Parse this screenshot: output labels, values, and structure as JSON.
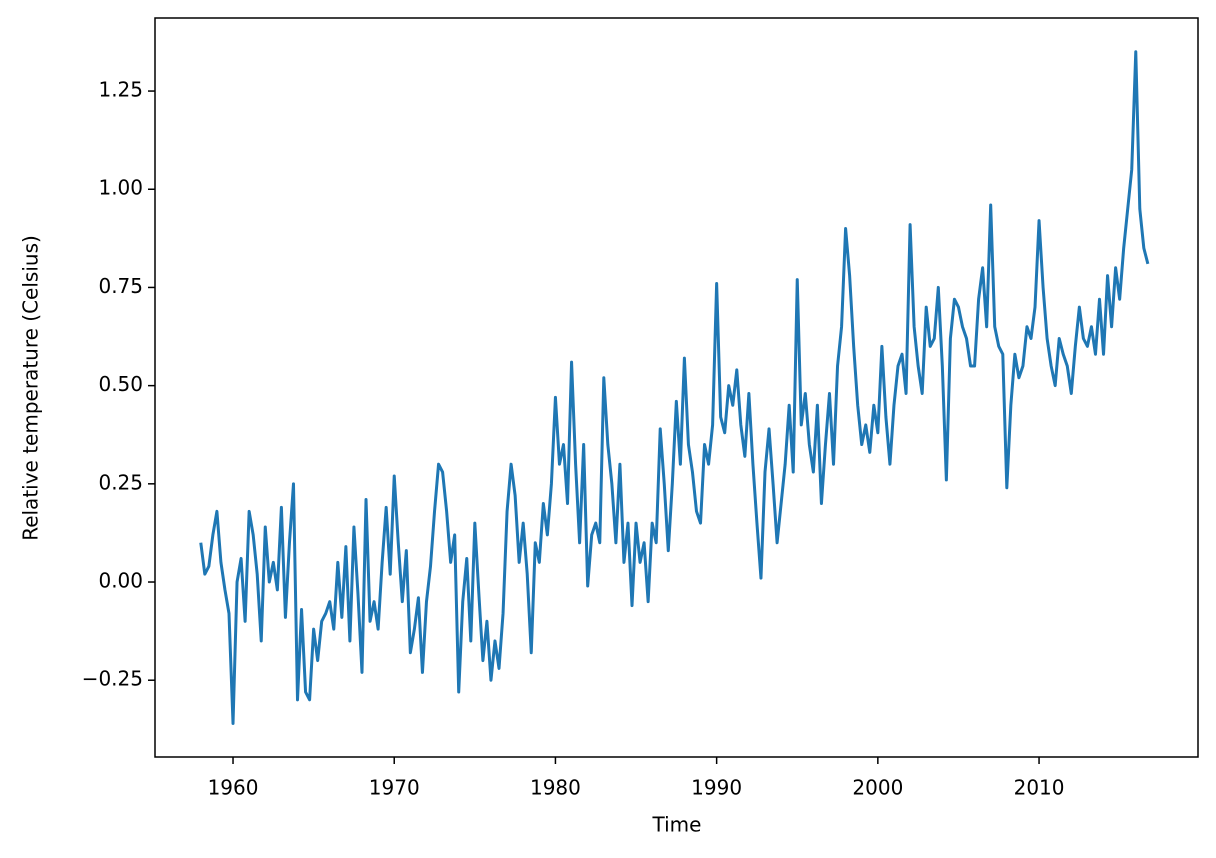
{
  "chart_data": {
    "type": "line",
    "xlabel": "Time",
    "ylabel": "Relative temperature (Celsius)",
    "xlim": [
      1955.16,
      2019.86
    ],
    "ylim": [
      -0.4455,
      1.436
    ],
    "xticks": [
      1960,
      1970,
      1980,
      1990,
      2000,
      2010
    ],
    "yticks": [
      {
        "value": -0.25,
        "label": "−0.25"
      },
      {
        "value": 0,
        "label": "0.00"
      },
      0.25,
      {
        "value": 0.5,
        "label": "0.50"
      },
      0.75,
      {
        "value": 1,
        "label": "1.00"
      },
      1.25
    ],
    "grid": false,
    "x": [
      1958,
      1958.25,
      1958.5,
      1958.75,
      1959,
      1959.25,
      1959.5,
      1959.75,
      1960,
      1960.25,
      1960.5,
      1960.75,
      1961,
      1961.25,
      1961.5,
      1961.75,
      1962,
      1962.25,
      1962.5,
      1962.75,
      1963,
      1963.25,
      1963.5,
      1963.75,
      1964,
      1964.25,
      1964.5,
      1964.75,
      1965,
      1965.25,
      1965.5,
      1965.75,
      1966,
      1966.25,
      1966.5,
      1966.75,
      1967,
      1967.25,
      1967.5,
      1967.75,
      1968,
      1968.25,
      1968.5,
      1968.75,
      1969,
      1969.25,
      1969.5,
      1969.75,
      1970,
      1970.25,
      1970.5,
      1970.75,
      1971,
      1971.25,
      1971.5,
      1971.75,
      1972,
      1972.25,
      1972.5,
      1972.75,
      1973,
      1973.25,
      1973.5,
      1973.75,
      1974,
      1974.25,
      1974.5,
      1974.75,
      1975,
      1975.25,
      1975.5,
      1975.75,
      1976,
      1976.25,
      1976.5,
      1976.75,
      1977,
      1977.25,
      1977.5,
      1977.75,
      1978,
      1978.25,
      1978.5,
      1978.75,
      1979,
      1979.25,
      1979.5,
      1979.75,
      1980,
      1980.25,
      1980.5,
      1980.75,
      1981,
      1981.25,
      1981.5,
      1981.75,
      1982,
      1982.25,
      1982.5,
      1982.75,
      1983,
      1983.25,
      1983.5,
      1983.75,
      1984,
      1984.25,
      1984.5,
      1984.75,
      1985,
      1985.25,
      1985.5,
      1985.75,
      1986,
      1986.25,
      1986.5,
      1986.75,
      1987,
      1987.25,
      1987.5,
      1987.75,
      1988,
      1988.25,
      1988.5,
      1988.75,
      1989,
      1989.25,
      1989.5,
      1989.75,
      1990,
      1990.25,
      1990.5,
      1990.75,
      1991,
      1991.25,
      1991.5,
      1991.75,
      1992,
      1992.25,
      1992.5,
      1992.75,
      1993,
      1993.25,
      1993.5,
      1993.75,
      1994,
      1994.25,
      1994.5,
      1994.75,
      1995,
      1995.25,
      1995.5,
      1995.75,
      1996,
      1996.25,
      1996.5,
      1996.75,
      1997,
      1997.25,
      1997.5,
      1997.75,
      1998,
      1998.25,
      1998.5,
      1998.75,
      1999,
      1999.25,
      1999.5,
      1999.75,
      2000,
      2000.25,
      2000.5,
      2000.75,
      2001,
      2001.25,
      2001.5,
      2001.75,
      2002,
      2002.25,
      2002.5,
      2002.75,
      2003,
      2003.25,
      2003.5,
      2003.75,
      2004,
      2004.25,
      2004.5,
      2004.75,
      2005,
      2005.25,
      2005.5,
      2005.75,
      2006,
      2006.25,
      2006.5,
      2006.75,
      2007,
      2007.25,
      2007.5,
      2007.75,
      2008,
      2008.25,
      2008.5,
      2008.75,
      2009,
      2009.25,
      2009.5,
      2009.75,
      2010,
      2010.25,
      2010.5,
      2010.75,
      2011,
      2011.25,
      2011.5,
      2011.75,
      2012,
      2012.25,
      2012.5,
      2012.75,
      2013,
      2013.25,
      2013.5,
      2013.75,
      2014,
      2014.25,
      2014.5,
      2014.75,
      2015,
      2015.25,
      2015.5,
      2015.75,
      2016,
      2016.25,
      2016.5,
      2016.75
    ],
    "series": [
      {
        "color": "#1f77b4",
        "values": [
          0.1,
          0.02,
          0.04,
          0.12,
          0.18,
          0.05,
          -0.02,
          -0.08,
          -0.36,
          0.0,
          0.06,
          -0.1,
          0.18,
          0.12,
          0.02,
          -0.15,
          0.14,
          0.0,
          0.05,
          -0.02,
          0.19,
          -0.09,
          0.1,
          0.25,
          -0.3,
          -0.07,
          -0.28,
          -0.3,
          -0.12,
          -0.2,
          -0.1,
          -0.08,
          -0.05,
          -0.12,
          0.05,
          -0.09,
          0.09,
          -0.15,
          0.14,
          -0.03,
          -0.23,
          0.21,
          -0.1,
          -0.05,
          -0.12,
          0.05,
          0.19,
          0.02,
          0.27,
          0.1,
          -0.05,
          0.08,
          -0.18,
          -0.12,
          -0.04,
          -0.23,
          -0.05,
          0.04,
          0.18,
          0.3,
          0.28,
          0.18,
          0.05,
          0.12,
          -0.28,
          -0.05,
          0.06,
          -0.15,
          0.15,
          -0.03,
          -0.2,
          -0.1,
          -0.25,
          -0.15,
          -0.22,
          -0.08,
          0.18,
          0.3,
          0.22,
          0.05,
          0.15,
          0.02,
          -0.18,
          0.1,
          0.05,
          0.2,
          0.12,
          0.25,
          0.47,
          0.3,
          0.35,
          0.2,
          0.56,
          0.3,
          0.1,
          0.35,
          -0.01,
          0.12,
          0.15,
          0.1,
          0.52,
          0.35,
          0.25,
          0.1,
          0.3,
          0.05,
          0.15,
          -0.06,
          0.15,
          0.05,
          0.1,
          -0.05,
          0.15,
          0.1,
          0.39,
          0.25,
          0.08,
          0.25,
          0.46,
          0.3,
          0.57,
          0.35,
          0.28,
          0.18,
          0.15,
          0.35,
          0.3,
          0.4,
          0.76,
          0.42,
          0.38,
          0.5,
          0.45,
          0.54,
          0.4,
          0.32,
          0.48,
          0.3,
          0.15,
          0.01,
          0.28,
          0.39,
          0.25,
          0.1,
          0.2,
          0.3,
          0.45,
          0.28,
          0.77,
          0.4,
          0.48,
          0.35,
          0.28,
          0.45,
          0.2,
          0.35,
          0.48,
          0.3,
          0.55,
          0.65,
          0.9,
          0.78,
          0.6,
          0.45,
          0.35,
          0.4,
          0.33,
          0.45,
          0.38,
          0.6,
          0.42,
          0.3,
          0.45,
          0.55,
          0.58,
          0.48,
          0.91,
          0.65,
          0.55,
          0.48,
          0.7,
          0.6,
          0.62,
          0.75,
          0.55,
          0.26,
          0.62,
          0.72,
          0.7,
          0.65,
          0.62,
          0.55,
          0.55,
          0.72,
          0.8,
          0.65,
          0.96,
          0.65,
          0.6,
          0.58,
          0.24,
          0.45,
          0.58,
          0.52,
          0.55,
          0.65,
          0.62,
          0.7,
          0.92,
          0.75,
          0.62,
          0.55,
          0.5,
          0.62,
          0.58,
          0.55,
          0.48,
          0.6,
          0.7,
          0.62,
          0.6,
          0.65,
          0.58,
          0.72,
          0.58,
          0.78,
          0.65,
          0.8,
          0.72,
          0.85,
          0.95,
          1.05,
          1.35,
          0.95,
          0.85,
          0.81
        ]
      }
    ]
  }
}
